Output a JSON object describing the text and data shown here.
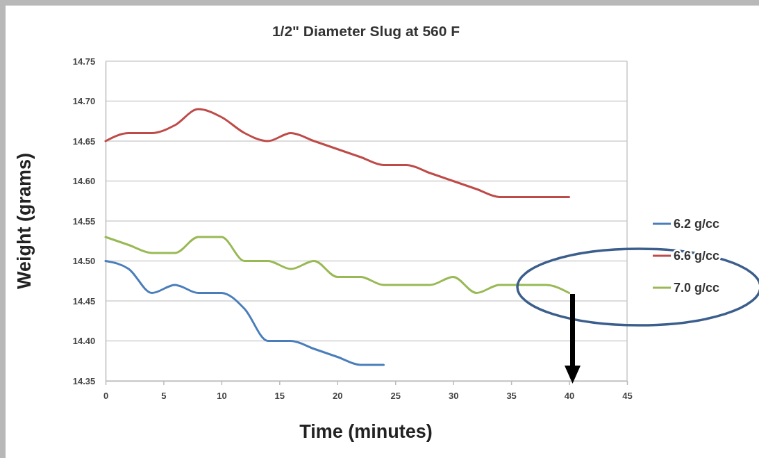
{
  "chart_data": {
    "type": "line",
    "title": "1/2\" Diameter Slug at 560 F",
    "xlabel": "Time (minutes)",
    "ylabel": "Weight (grams)",
    "x": [
      0,
      2,
      4,
      6,
      8,
      10,
      12,
      14,
      16,
      18,
      20,
      22,
      24,
      26,
      28,
      30,
      32,
      34,
      36,
      38,
      40
    ],
    "series": [
      {
        "name": "6.2 g/cc",
        "color": "#4a7ebb",
        "values": [
          14.5,
          14.49,
          14.46,
          14.47,
          14.46,
          14.46,
          14.44,
          14.4,
          14.4,
          14.39,
          14.38,
          14.37,
          14.37,
          null,
          null,
          null,
          null,
          null,
          null,
          null,
          null
        ]
      },
      {
        "name": "6.6 g/cc",
        "color": "#be4b48",
        "values": [
          14.65,
          14.66,
          14.66,
          14.67,
          14.69,
          14.68,
          14.66,
          14.65,
          14.66,
          14.65,
          14.64,
          14.63,
          14.62,
          14.62,
          14.61,
          14.6,
          14.59,
          14.58,
          14.58,
          14.58,
          14.58
        ]
      },
      {
        "name": "7.0 g/cc",
        "color": "#98b954",
        "values": [
          14.53,
          14.52,
          14.51,
          14.51,
          14.53,
          14.53,
          14.5,
          14.5,
          14.49,
          14.5,
          14.48,
          14.48,
          14.47,
          14.47,
          14.47,
          14.48,
          14.46,
          14.47,
          14.47,
          14.47,
          14.46
        ]
      }
    ],
    "xlim": [
      0,
      45
    ],
    "xticks": [
      0,
      5,
      10,
      15,
      20,
      25,
      30,
      35,
      40,
      45
    ],
    "ylim": [
      14.35,
      14.75
    ],
    "yticks": [
      {
        "value": 14.35,
        "label": "14.35"
      },
      {
        "value": 14.4,
        "label": "14.40"
      },
      {
        "value": 14.45,
        "label": "14.45"
      },
      {
        "value": 14.5,
        "label": "14.50"
      },
      {
        "value": 14.55,
        "label": "14.55"
      },
      {
        "value": 14.6,
        "label": "14.60"
      },
      {
        "value": 14.65,
        "label": "14.65"
      },
      {
        "value": 14.7,
        "label": "14.70"
      },
      {
        "value": 14.75,
        "label": "14.75"
      }
    ],
    "grid": "y",
    "legend": "right",
    "marker": "none",
    "line_style": "solid"
  }
}
